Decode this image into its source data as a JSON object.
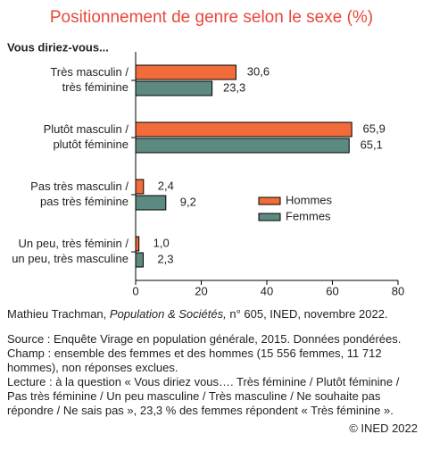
{
  "chart_data": {
    "type": "hbar",
    "title": "Positionnement de genre selon le sexe (%)",
    "subtitle": "Vous diriez-vous...",
    "categories": [
      [
        "Très masculin /",
        "très féminine"
      ],
      [
        "Plutôt masculin /",
        "plutôt féminine"
      ],
      [
        "Pas très masculin /",
        "pas très féminine"
      ],
      [
        "Un peu, très féminin /",
        "un peu, très masculine"
      ]
    ],
    "series": [
      {
        "name": "Hommes",
        "color": "#f26b3a",
        "values": [
          30.6,
          65.9,
          2.4,
          1.0
        ],
        "value_labels": [
          "30,6",
          "65,9",
          "2,4",
          "1,0"
        ]
      },
      {
        "name": "Femmes",
        "color": "#5c8a81",
        "values": [
          23.3,
          65.1,
          9.2,
          2.3
        ],
        "value_labels": [
          "23,3",
          "65,1",
          "9,2",
          "2,3"
        ]
      }
    ],
    "xlim": [
      0,
      80
    ],
    "xticks": [
      0,
      20,
      40,
      60,
      80
    ],
    "grid": false
  },
  "notes": {
    "author": "Mathieu Trachman,",
    "journal": "Population & Sociétés,",
    "reference": "n° 605, INED, novembre 2022.",
    "source": "Source : Enquête Virage en population générale, 2015. Données pondérées.",
    "scope": "Champ : ensemble des femmes et des hommes (15 556 femmes, 11 712 hommes), non réponses exclues.",
    "reading": "Lecture : à la question « Vous diriez vous…. Très féminine / Plutôt féminine / Pas très féminine / Un peu masculine / Très masculine / Ne souhaite pas répondre / Ne sais pas », 23,3 % des femmes répondent « Très féminine ».",
    "copyright": "© INED 2022"
  }
}
